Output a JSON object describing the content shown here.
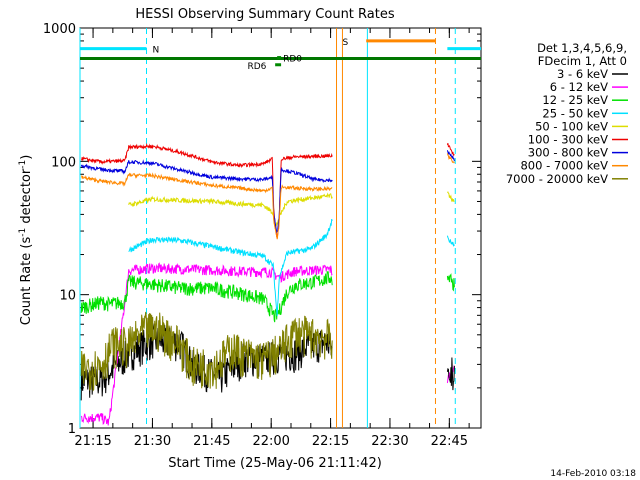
{
  "chart_data": {
    "type": "line",
    "title": "HESSI Observing Summary Count Rates",
    "xlabel": "Start Time (25-May-06 21:11:42)",
    "ylabel_main": "Count Rate (s",
    "ylabel_sup1": "-1",
    "ylabel_mid": " detector",
    "ylabel_sup2": "-1",
    "ylabel_end": ")",
    "yscale": "log",
    "ylim": [
      1,
      1000
    ],
    "xlim_minutes": [
      1271.7,
      1373
    ],
    "x_ticks": [
      {
        "m": 1275,
        "label": "21:15"
      },
      {
        "m": 1290,
        "label": "21:30"
      },
      {
        "m": 1305,
        "label": "21:45"
      },
      {
        "m": 1320,
        "label": "22:00"
      },
      {
        "m": 1335,
        "label": "22:15"
      },
      {
        "m": 1350,
        "label": "22:30"
      },
      {
        "m": 1365,
        "label": "22:45"
      }
    ],
    "y_ticks": [
      {
        "v": 1,
        "label": "1"
      },
      {
        "v": 10,
        "label": "10"
      },
      {
        "v": 100,
        "label": "100"
      },
      {
        "v": 1000,
        "label": "1000"
      }
    ],
    "legend_header": [
      "Det 1,3,4,5,6,9,",
      "FDecim 1, Att 0"
    ],
    "timestamp": "14-Feb-2010 03:18",
    "series": [
      {
        "name": "3 - 6 keV",
        "color": "#000000",
        "points": [
          [
            1272,
            2.3
          ],
          [
            1277,
            2.3
          ],
          [
            1284,
            3.7
          ],
          [
            1290,
            4.6
          ],
          [
            1297,
            4.4
          ],
          [
            1300,
            3.0
          ],
          [
            1307,
            2.4
          ],
          [
            1313,
            3.4
          ],
          [
            1318,
            3.3
          ],
          [
            1322,
            3.6
          ],
          [
            1326,
            3.7
          ],
          [
            1329,
            4.1
          ],
          [
            1334,
            4.5
          ],
          [
            1335.5,
            3.8
          ]
        ]
      },
      {
        "name": "6 - 12 keV",
        "color": "#ff00ff",
        "points": [
          [
            1272,
            1.2
          ],
          [
            1277,
            1.2
          ],
          [
            1279,
            1.1
          ],
          [
            1283,
            8.6
          ],
          [
            1284,
            15.2
          ],
          [
            1290,
            15.8
          ],
          [
            1297,
            15.6
          ],
          [
            1305,
            15.3
          ],
          [
            1312,
            15.0
          ],
          [
            1320,
            14.8
          ],
          [
            1322,
            13.5
          ],
          [
            1326,
            15.0
          ],
          [
            1330,
            15.2
          ],
          [
            1335,
            15.5
          ],
          [
            1335.5,
            14.5
          ]
        ]
      },
      {
        "name": "12 - 25 keV",
        "color": "#00e000",
        "points": [
          [
            1272,
            8.0
          ],
          [
            1277,
            8.8
          ],
          [
            1279,
            8.5
          ],
          [
            1283,
            8.8
          ],
          [
            1284,
            12.5
          ],
          [
            1290,
            12.0
          ],
          [
            1297,
            11.2
          ],
          [
            1305,
            11.2
          ],
          [
            1312,
            10.3
          ],
          [
            1318,
            9.3
          ],
          [
            1321,
            6.8
          ],
          [
            1322,
            7.5
          ],
          [
            1324,
            10.5
          ],
          [
            1326,
            11.8
          ],
          [
            1331,
            12.5
          ],
          [
            1335,
            13.5
          ],
          [
            1335.5,
            12.5
          ]
        ]
      },
      {
        "name": "25 - 50 keV",
        "color": "#00e0ff",
        "points": [
          [
            1284,
            21.5
          ],
          [
            1290,
            26
          ],
          [
            1297,
            25.5
          ],
          [
            1305,
            23
          ],
          [
            1312,
            20.8
          ],
          [
            1318,
            19.5
          ],
          [
            1320.5,
            16.5
          ],
          [
            1321.5,
            6.8
          ],
          [
            1322,
            13.5
          ],
          [
            1324,
            20.5
          ],
          [
            1330,
            22
          ],
          [
            1334,
            28
          ],
          [
            1335.5,
            37
          ]
        ]
      },
      {
        "name": "50 - 100 keV",
        "color": "#dddd00",
        "points": [
          [
            1284,
            47
          ],
          [
            1290,
            52
          ],
          [
            1297,
            51
          ],
          [
            1305,
            50
          ],
          [
            1312,
            48
          ],
          [
            1318,
            47
          ],
          [
            1320.5,
            41
          ],
          [
            1321,
            31
          ],
          [
            1322,
            38
          ],
          [
            1324,
            50
          ],
          [
            1330,
            53
          ],
          [
            1335,
            55
          ],
          [
            1335.5,
            54
          ]
        ]
      },
      {
        "name": "100 - 300 keV",
        "color": "#ee0000",
        "points": [
          [
            1272,
            105
          ],
          [
            1277,
            99
          ],
          [
            1283,
            101
          ],
          [
            1284,
            128
          ],
          [
            1290,
            130
          ],
          [
            1297,
            117
          ],
          [
            1305,
            99
          ],
          [
            1312,
            93
          ],
          [
            1318,
            96
          ],
          [
            1320.3,
            104
          ],
          [
            1320.6,
            44
          ],
          [
            1321.5,
            26
          ],
          [
            1322,
            35
          ],
          [
            1322.5,
            104
          ],
          [
            1326,
            108
          ],
          [
            1331,
            109
          ],
          [
            1335.5,
            110
          ]
        ]
      },
      {
        "name": "300 - 800 keV",
        "color": "#0000dd",
        "points": [
          [
            1272,
            93
          ],
          [
            1277,
            87
          ],
          [
            1283,
            84
          ],
          [
            1284,
            99
          ],
          [
            1290,
            97
          ],
          [
            1297,
            86
          ],
          [
            1305,
            76
          ],
          [
            1312,
            74
          ],
          [
            1318,
            73
          ],
          [
            1320.3,
            76
          ],
          [
            1320.6,
            41
          ],
          [
            1321.5,
            29
          ],
          [
            1322,
            38
          ],
          [
            1322.5,
            87
          ],
          [
            1326,
            82
          ],
          [
            1331,
            73
          ],
          [
            1335.5,
            72
          ]
        ]
      },
      {
        "name": "800 - 7000 keV",
        "color": "#ff8800",
        "points": [
          [
            1272,
            76
          ],
          [
            1277,
            71
          ],
          [
            1283,
            68
          ],
          [
            1284,
            79
          ],
          [
            1290,
            78
          ],
          [
            1297,
            72
          ],
          [
            1305,
            66
          ],
          [
            1312,
            63
          ],
          [
            1318,
            60
          ],
          [
            1320.3,
            63
          ],
          [
            1320.6,
            37
          ],
          [
            1321.5,
            26
          ],
          [
            1322,
            34
          ],
          [
            1322.5,
            64
          ],
          [
            1326,
            63
          ],
          [
            1331,
            62
          ],
          [
            1335.5,
            62
          ]
        ]
      },
      {
        "name": "7000 - 20000 keV",
        "color": "#808000",
        "points": [
          [
            1272,
            2.8
          ],
          [
            1277,
            3.0
          ],
          [
            1280,
            4.3
          ],
          [
            1284,
            4.2
          ],
          [
            1288,
            5.5
          ],
          [
            1292,
            5.5
          ],
          [
            1297,
            4.3
          ],
          [
            1300,
            3.0
          ],
          [
            1306,
            3.0
          ],
          [
            1310,
            4.0
          ],
          [
            1313,
            3.6
          ],
          [
            1318,
            3.3
          ],
          [
            1322,
            3.8
          ],
          [
            1326,
            5.3
          ],
          [
            1330,
            5.0
          ],
          [
            1335.5,
            4.8
          ]
        ]
      }
    ],
    "right_segments": [
      {
        "color": "#ee0000",
        "points": [
          [
            1364.5,
            135
          ],
          [
            1365.5,
            120
          ],
          [
            1366.3,
            110
          ]
        ]
      },
      {
        "color": "#0000dd",
        "points": [
          [
            1364.5,
            120
          ],
          [
            1365.5,
            110
          ],
          [
            1366.3,
            103
          ]
        ]
      },
      {
        "color": "#ff8800",
        "points": [
          [
            1364.5,
            112
          ],
          [
            1365.5,
            103
          ],
          [
            1366.3,
            97
          ]
        ]
      },
      {
        "color": "#dddd00",
        "points": [
          [
            1364.5,
            58
          ],
          [
            1365.5,
            52
          ],
          [
            1366.3,
            50
          ]
        ]
      },
      {
        "color": "#00e0ff",
        "points": [
          [
            1364.5,
            27
          ],
          [
            1365.5,
            25
          ],
          [
            1366.3,
            24
          ]
        ]
      },
      {
        "color": "#00e000",
        "points": [
          [
            1364.5,
            13.2
          ],
          [
            1365.5,
            12.5
          ],
          [
            1366.3,
            12.0
          ]
        ]
      },
      {
        "color": "#ff00ff",
        "points": [
          [
            1364.5,
            2.3
          ],
          [
            1365.5,
            2.5
          ],
          [
            1366.3,
            2.7
          ]
        ]
      },
      {
        "color": "#000000",
        "points": [
          [
            1364.5,
            2.2
          ],
          [
            1365.5,
            2.6
          ],
          [
            1366.3,
            2.7
          ]
        ]
      }
    ],
    "flags": [
      {
        "label": "N",
        "color": "#00e5ff",
        "y": 700,
        "segments": [
          [
            1271.7,
            1288.5
          ],
          [
            1364.5,
            1373
          ]
        ],
        "label_m": 1290
      },
      {
        "label": "S",
        "color": "#ff8800",
        "y": 800,
        "segments": [
          [
            1344,
            1361.5
          ]
        ],
        "label_m": 1338
      },
      {
        "label": "RD0",
        "color": "#008800",
        "y": 600,
        "segments": [
          [
            1321.5,
            1322.5
          ]
        ],
        "label_m": 1323
      },
      {
        "label": "RD6",
        "color": "#008800",
        "y": 530,
        "segments": [
          [
            1321,
            1322.5
          ]
        ],
        "label_m": 1314
      }
    ],
    "green_band": {
      "color": "#007700",
      "y": 590,
      "from": 1271.7,
      "to": 1373
    },
    "vlines": [
      {
        "m": 1271.7,
        "color": "#00e5ff",
        "style": "solid"
      },
      {
        "m": 1288.5,
        "color": "#00e5ff",
        "style": "dashed"
      },
      {
        "m": 1336.5,
        "color": "#ff8800",
        "style": "solid"
      },
      {
        "m": 1338,
        "color": "#ff8800",
        "style": "solid"
      },
      {
        "m": 1344.3,
        "color": "#00e5ff",
        "style": "solid"
      },
      {
        "m": 1361.5,
        "color": "#ff8800",
        "style": "dashed"
      },
      {
        "m": 1366.5,
        "color": "#00e5ff",
        "style": "dashed"
      }
    ]
  }
}
